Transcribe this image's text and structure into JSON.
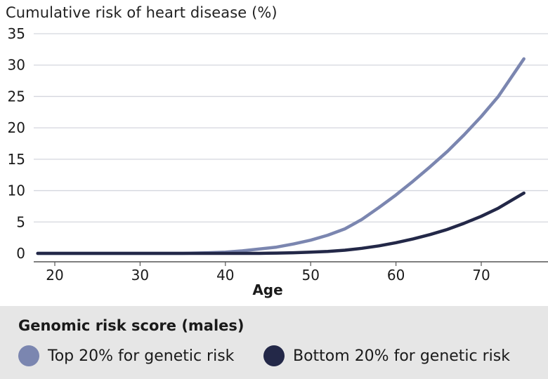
{
  "chart_data": {
    "type": "line",
    "title": "Cumulative risk of heart disease (%)",
    "xlabel": "Age",
    "ylabel": "",
    "xlim": [
      18,
      77
    ],
    "ylim": [
      0,
      35
    ],
    "x_ticks": [
      20,
      30,
      40,
      50,
      60,
      70
    ],
    "y_ticks": [
      0,
      5,
      10,
      15,
      20,
      25,
      30,
      35
    ],
    "grid": true,
    "series": [
      {
        "name": "Top 20% for genetic risk",
        "color": "#7b86b0",
        "x": [
          18,
          25,
          30,
          35,
          38,
          40,
          42,
          44,
          46,
          48,
          50,
          52,
          54,
          56,
          58,
          60,
          62,
          64,
          66,
          68,
          70,
          72,
          75
        ],
        "y": [
          0,
          0,
          0,
          0,
          0.1,
          0.2,
          0.4,
          0.7,
          1.0,
          1.5,
          2.1,
          2.9,
          3.9,
          5.4,
          7.3,
          9.3,
          11.5,
          13.8,
          16.2,
          18.9,
          21.8,
          25.0,
          31.0
        ]
      },
      {
        "name": "Bottom 20% for genetic risk",
        "color": "#232848",
        "x": [
          18,
          25,
          30,
          35,
          40,
          44,
          46,
          48,
          50,
          52,
          54,
          56,
          58,
          60,
          62,
          64,
          66,
          68,
          70,
          72,
          75
        ],
        "y": [
          0,
          0,
          0,
          0,
          0,
          0,
          0.05,
          0.1,
          0.2,
          0.3,
          0.5,
          0.8,
          1.2,
          1.7,
          2.3,
          3.0,
          3.8,
          4.8,
          5.9,
          7.2,
          9.6
        ]
      }
    ]
  },
  "legend": {
    "title": "Genomic risk score (males)",
    "items": [
      {
        "label": "Top 20% for genetic risk",
        "color": "#7b86b0"
      },
      {
        "label": "Bottom 20% for genetic risk",
        "color": "#232848"
      }
    ]
  }
}
